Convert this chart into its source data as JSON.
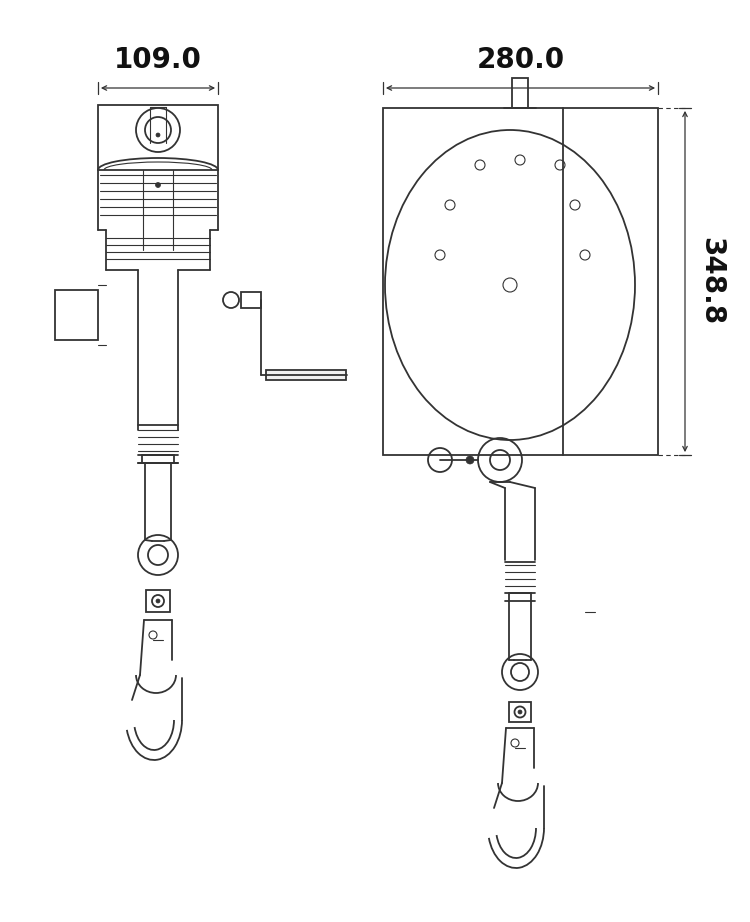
{
  "bg_color": "#ffffff",
  "line_color": "#333333",
  "dim_color": "#111111",
  "fig_width": 7.5,
  "fig_height": 9.22,
  "title_109": "109.0",
  "title_280": "280.0",
  "title_348": "348.8"
}
